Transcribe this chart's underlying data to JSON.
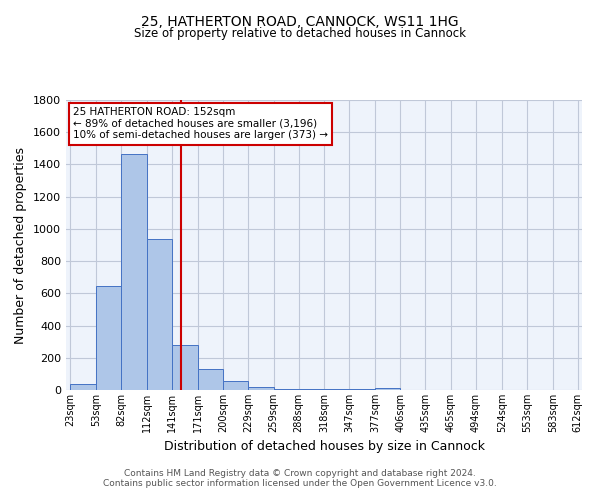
{
  "title1": "25, HATHERTON ROAD, CANNOCK, WS11 1HG",
  "title2": "Size of property relative to detached houses in Cannock",
  "xlabel": "Distribution of detached houses by size in Cannock",
  "ylabel": "Number of detached properties",
  "footnote1": "Contains HM Land Registry data © Crown copyright and database right 2024.",
  "footnote2": "Contains public sector information licensed under the Open Government Licence v3.0.",
  "annotation_line1": "25 HATHERTON ROAD: 152sqm",
  "annotation_line2": "← 89% of detached houses are smaller (3,196)",
  "annotation_line3": "10% of semi-detached houses are larger (373) →",
  "property_size": 152,
  "bar_left_edges": [
    23,
    53,
    82,
    112,
    141,
    171,
    200,
    229,
    259,
    288,
    318,
    347,
    377,
    406,
    435,
    465,
    494,
    524,
    553,
    583
  ],
  "bar_widths": [
    30,
    29,
    30,
    29,
    30,
    29,
    29,
    30,
    29,
    30,
    29,
    30,
    29,
    29,
    30,
    29,
    30,
    29,
    30,
    29
  ],
  "bar_heights": [
    35,
    648,
    1463,
    938,
    280,
    128,
    57,
    20,
    8,
    5,
    5,
    8,
    15,
    0,
    0,
    0,
    0,
    0,
    0,
    0
  ],
  "bar_color": "#aec6e8",
  "bar_edge_color": "#4472c4",
  "vline_x": 152,
  "vline_color": "#cc0000",
  "bg_color": "#eef3fb",
  "grid_color": "#c0c8d8",
  "ylim": [
    0,
    1800
  ],
  "yticks": [
    0,
    200,
    400,
    600,
    800,
    1000,
    1200,
    1400,
    1600,
    1800
  ],
  "xtick_labels": [
    "23sqm",
    "53sqm",
    "82sqm",
    "112sqm",
    "141sqm",
    "171sqm",
    "200sqm",
    "229sqm",
    "259sqm",
    "288sqm",
    "318sqm",
    "347sqm",
    "377sqm",
    "406sqm",
    "435sqm",
    "465sqm",
    "494sqm",
    "524sqm",
    "553sqm",
    "583sqm",
    "612sqm"
  ]
}
